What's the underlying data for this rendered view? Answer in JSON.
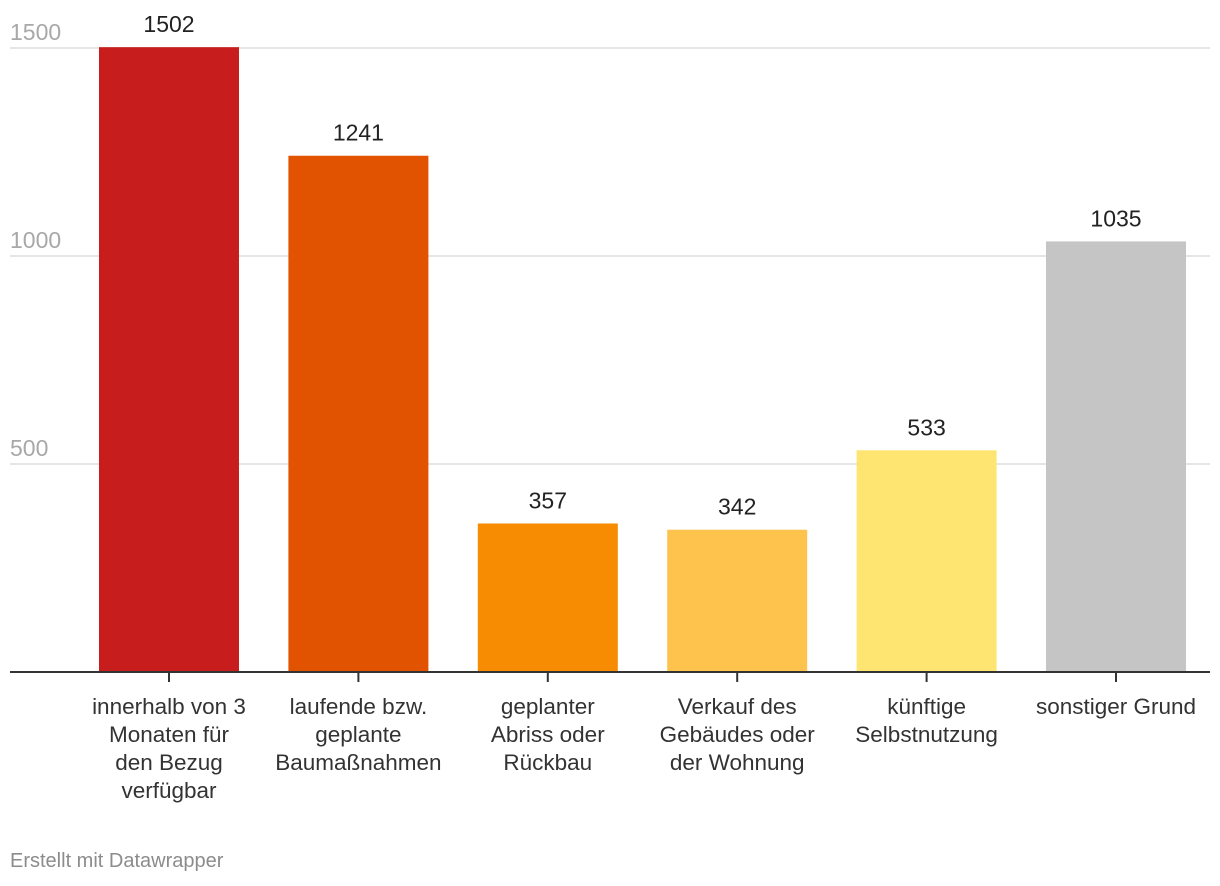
{
  "chart_data": {
    "type": "bar",
    "categories": [
      [
        "innerhalb von 3",
        "Monaten für",
        "den Bezug",
        "verfügbar"
      ],
      [
        "laufende bzw.",
        "geplante",
        "Baumaßnahmen"
      ],
      [
        "geplanter",
        "Abriss oder",
        "Rückbau"
      ],
      [
        "Verkauf des",
        "Gebäudes oder",
        "der Wohnung"
      ],
      [
        "künftige",
        "Selbstnutzung"
      ],
      [
        "sonstiger Grund"
      ]
    ],
    "values": [
      1502,
      1241,
      357,
      342,
      533,
      1035
    ],
    "value_labels": [
      "1502",
      "1241",
      "357",
      "342",
      "533",
      "1035"
    ],
    "colors": [
      "#c71e1d",
      "#e15201",
      "#f78b01",
      "#fec34d",
      "#fee572",
      "#c5c5c5"
    ],
    "y_ticks": [
      500,
      1000,
      1500
    ],
    "y_tick_labels": [
      "500",
      "1000",
      "1500"
    ],
    "ylim": [
      0,
      1500
    ],
    "grid": true,
    "legend": "none",
    "title": "",
    "xlabel": "",
    "ylabel": ""
  },
  "footer": {
    "credit": "Erstellt mit Datawrapper"
  }
}
